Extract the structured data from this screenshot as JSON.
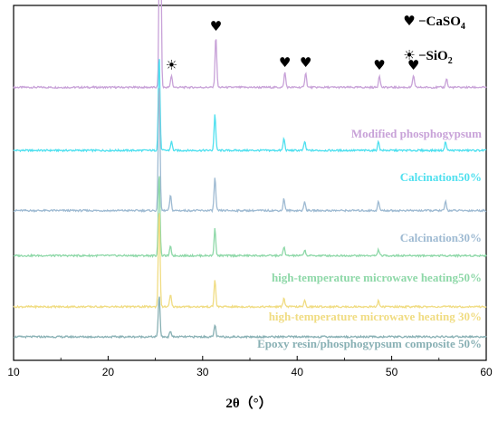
{
  "chart_data": {
    "type": "line",
    "xlabel": "2θ（°）",
    "xlim": [
      10,
      60
    ],
    "xticks": [
      10,
      20,
      30,
      40,
      50,
      60
    ],
    "yticks_shown": false,
    "legend": {
      "placement": "top-right",
      "entries": [
        {
          "symbol": "♥",
          "symbol_name": "heart-icon",
          "prefix": "−CaSO",
          "sub": "4"
        },
        {
          "symbol": "☀",
          "symbol_name": "sun-icon",
          "prefix": "−SiO",
          "sub": "2"
        }
      ]
    },
    "peak_markers": [
      {
        "symbol": "♥",
        "symbol_name": "heart-icon",
        "x": 25.5
      },
      {
        "symbol": "☀",
        "symbol_name": "sun-icon",
        "x": 26.7
      },
      {
        "symbol": "♥",
        "symbol_name": "heart-icon",
        "x": 31.4
      },
      {
        "symbol": "♥",
        "symbol_name": "heart-icon",
        "x": 38.7
      },
      {
        "symbol": "♥",
        "symbol_name": "heart-icon",
        "x": 40.9
      },
      {
        "symbol": "♥",
        "symbol_name": "heart-icon",
        "x": 48.7
      },
      {
        "symbol": "♥",
        "symbol_name": "heart-icon",
        "x": 52.3
      }
    ],
    "series": [
      {
        "name": "Modified phosphogypsum",
        "color": "#c8a2d8",
        "baseline": 0.83,
        "peaks": [
          [
            25.5,
            1.0
          ],
          [
            26.7,
            0.04
          ],
          [
            31.4,
            0.17
          ],
          [
            38.7,
            0.05
          ],
          [
            40.9,
            0.05
          ],
          [
            48.7,
            0.04
          ],
          [
            52.3,
            0.04
          ],
          [
            55.8,
            0.03
          ]
        ]
      },
      {
        "name": "Calcination50%",
        "color": "#4fe0ef",
        "baseline": 0.62,
        "peaks": [
          [
            25.4,
            0.32
          ],
          [
            26.7,
            0.03
          ],
          [
            31.3,
            0.12
          ],
          [
            38.6,
            0.04
          ],
          [
            40.8,
            0.03
          ],
          [
            48.6,
            0.03
          ],
          [
            55.7,
            0.03
          ]
        ]
      },
      {
        "name": "Calcination30%",
        "color": "#9ebad2",
        "baseline": 0.42,
        "peaks": [
          [
            25.4,
            0.43
          ],
          [
            26.6,
            0.05
          ],
          [
            31.3,
            0.11
          ],
          [
            38.6,
            0.04
          ],
          [
            40.8,
            0.03
          ],
          [
            48.6,
            0.03
          ],
          [
            55.7,
            0.03
          ]
        ]
      },
      {
        "name": "high-temperature microwave heating50%",
        "color": "#8ed8a8",
        "baseline": 0.27,
        "peaks": [
          [
            25.4,
            0.28
          ],
          [
            26.6,
            0.03
          ],
          [
            31.3,
            0.09
          ],
          [
            38.6,
            0.03
          ],
          [
            40.8,
            0.02
          ],
          [
            48.6,
            0.02
          ]
        ]
      },
      {
        "name": "high-temperature microwave heating 30%",
        "color": "#f0dc82",
        "baseline": 0.1,
        "peaks": [
          [
            25.4,
            0.33
          ],
          [
            26.6,
            0.04
          ],
          [
            31.3,
            0.09
          ],
          [
            38.6,
            0.03
          ],
          [
            40.8,
            0.02
          ],
          [
            48.6,
            0.02
          ]
        ]
      },
      {
        "name": "Epoxy resin/phosphogypsum composite 50%",
        "color": "#88b0b4",
        "baseline": 0.0,
        "peaks": [
          [
            25.4,
            0.14
          ],
          [
            26.6,
            0.02
          ],
          [
            31.3,
            0.04
          ]
        ]
      }
    ]
  }
}
